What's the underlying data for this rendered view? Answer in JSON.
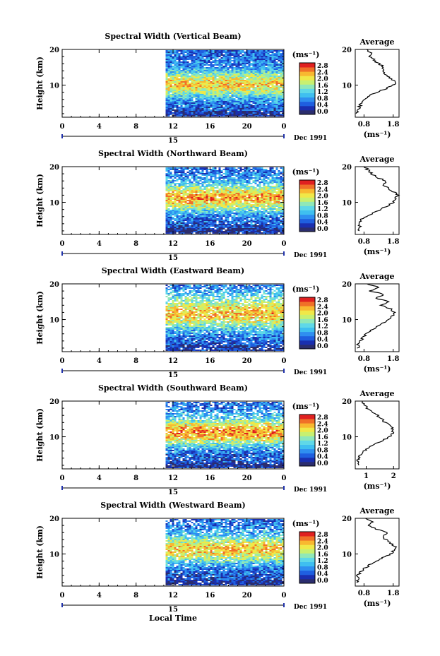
{
  "figure": {
    "xlabel": "Local Time",
    "date_label": "Dec 1991",
    "day_label": "15",
    "x_ticks": [
      "0",
      "4",
      "8",
      "12",
      "16",
      "20",
      "0"
    ],
    "y_ticks": [
      "20",
      "10"
    ],
    "ylabel": "Height (km)",
    "colorbar_unit": "(ms⁻¹)",
    "colorbar_ticks": [
      "2.8",
      "2.4",
      "2.0",
      "1.6",
      "1.2",
      "0.8",
      "0.4",
      "0.0"
    ],
    "avg_title": "Average",
    "avg_xlabel": "(ms⁻¹)"
  },
  "chart_data": [
    {
      "type": "heatmap",
      "title": "Spectral Width (Vertical Beam)",
      "xlabel": "Local Time",
      "ylabel": "Height (km)",
      "x_range_hours": [
        0,
        24
      ],
      "data_start_hour": 11.2,
      "y_range_km": [
        1,
        20
      ],
      "colorbar": {
        "unit": "ms-1",
        "range": [
          0.0,
          2.8
        ]
      },
      "peak_band_km": [
        8,
        13
      ],
      "peak_level": 0.55,
      "gap_fraction": 0.02,
      "average_profile": {
        "x_ticks": [
          "0.8",
          "1.8"
        ],
        "xlim": [
          0.5,
          2.0
        ],
        "height_km": [
          2,
          3,
          4,
          5,
          6,
          7,
          8,
          9,
          10,
          11,
          12,
          13,
          14,
          15,
          16,
          17,
          18,
          19,
          20
        ],
        "width": [
          0.58,
          0.6,
          0.65,
          0.72,
          0.8,
          0.95,
          1.25,
          1.55,
          1.8,
          1.88,
          1.7,
          1.55,
          1.4,
          1.5,
          1.3,
          1.15,
          1.0,
          1.05,
          0.9
        ]
      }
    },
    {
      "type": "heatmap",
      "title": "Spectral Width (Northward Beam)",
      "xlabel": "Local Time",
      "ylabel": "Height (km)",
      "x_range_hours": [
        0,
        24
      ],
      "data_start_hour": 11.2,
      "y_range_km": [
        1,
        20
      ],
      "colorbar": {
        "unit": "ms-1",
        "range": [
          0.0,
          2.8
        ]
      },
      "peak_band_km": [
        9,
        14
      ],
      "peak_level": 0.62,
      "gap_fraction": 0.06,
      "average_profile": {
        "x_ticks": [
          "0.8",
          "1.8"
        ],
        "xlim": [
          0.5,
          2.0
        ],
        "height_km": [
          2,
          3,
          4,
          5,
          6,
          7,
          8,
          9,
          10,
          11,
          12,
          13,
          14,
          15,
          16,
          17,
          18,
          19,
          20
        ],
        "width": [
          0.6,
          0.65,
          0.62,
          0.7,
          0.85,
          1.1,
          1.35,
          1.6,
          1.78,
          1.9,
          1.95,
          1.8,
          1.6,
          1.45,
          1.55,
          1.25,
          1.05,
          0.95,
          0.8
        ]
      }
    },
    {
      "type": "heatmap",
      "title": "Spectral Width (Eastward Beam)",
      "xlabel": "Local Time",
      "ylabel": "Height (km)",
      "x_range_hours": [
        0,
        24
      ],
      "data_start_hour": 11.2,
      "y_range_km": [
        1,
        20
      ],
      "colorbar": {
        "unit": "ms-1",
        "range": [
          0.0,
          2.8
        ]
      },
      "peak_band_km": [
        9,
        15
      ],
      "peak_level": 0.58,
      "gap_fraction": 0.08,
      "average_profile": {
        "x_ticks": [
          "0.8",
          "1.8"
        ],
        "xlim": [
          0.5,
          2.0
        ],
        "height_km": [
          2,
          3,
          4,
          5,
          6,
          7,
          8,
          9,
          10,
          11,
          12,
          13,
          14,
          15,
          16,
          17,
          18,
          19,
          20
        ],
        "width": [
          0.62,
          0.6,
          0.7,
          0.75,
          0.9,
          1.05,
          1.25,
          1.45,
          1.6,
          1.75,
          1.85,
          1.7,
          1.4,
          1.65,
          1.2,
          1.5,
          1.0,
          1.3,
          0.9
        ]
      }
    },
    {
      "type": "heatmap",
      "title": "Spectral Width (Southward Beam)",
      "xlabel": "Local Time",
      "ylabel": "Height (km)",
      "x_range_hours": [
        0,
        24
      ],
      "data_start_hour": 11.2,
      "y_range_km": [
        1,
        20
      ],
      "colorbar": {
        "unit": "ms-1",
        "range": [
          0.0,
          2.8
        ]
      },
      "peak_band_km": [
        9,
        14
      ],
      "peak_level": 0.65,
      "gap_fraction": 0.07,
      "average_profile": {
        "x_ticks": [
          "1",
          "2"
        ],
        "xlim": [
          0.6,
          2.2
        ],
        "height_km": [
          2,
          3,
          4,
          5,
          6,
          7,
          8,
          9,
          10,
          11,
          12,
          13,
          14,
          15,
          16,
          17,
          18,
          19,
          20
        ],
        "width": [
          0.7,
          0.68,
          0.72,
          0.78,
          0.9,
          1.1,
          1.35,
          1.6,
          1.85,
          1.95,
          2.0,
          1.9,
          1.7,
          1.55,
          1.4,
          1.2,
          1.05,
          0.95,
          0.85
        ]
      }
    },
    {
      "type": "heatmap",
      "title": "Spectral Width (Westward Beam)",
      "xlabel": "Local Time",
      "ylabel": "Height (km)",
      "x_range_hours": [
        0,
        24
      ],
      "data_start_hour": 11.2,
      "y_range_km": [
        1,
        20
      ],
      "colorbar": {
        "unit": "ms-1",
        "range": [
          0.0,
          2.8
        ]
      },
      "peak_band_km": [
        9,
        14
      ],
      "peak_level": 0.58,
      "gap_fraction": 0.07,
      "average_profile": {
        "x_ticks": [
          "0.8",
          "1.8"
        ],
        "xlim": [
          0.5,
          2.0
        ],
        "height_km": [
          2,
          3,
          4,
          5,
          6,
          7,
          8,
          9,
          10,
          11,
          12,
          13,
          14,
          15,
          16,
          17,
          18,
          19,
          20
        ],
        "width": [
          0.58,
          0.62,
          0.6,
          0.7,
          0.82,
          1.0,
          1.25,
          1.45,
          1.7,
          1.82,
          1.88,
          1.7,
          1.55,
          1.45,
          1.6,
          1.2,
          1.0,
          1.05,
          0.85
        ]
      }
    }
  ]
}
